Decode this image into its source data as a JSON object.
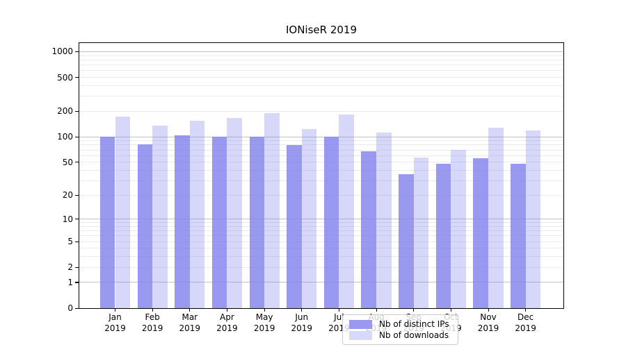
{
  "title": "IONiseR 2019",
  "chart_data": {
    "type": "bar",
    "title": "IONiseR 2019",
    "y_axis_scale": "log10(1+y)",
    "ylim": [
      0,
      1000
    ],
    "grid": "on",
    "legend_position": "inside-bottom-center",
    "categories": [
      {
        "month": "Jan",
        "year": "2019"
      },
      {
        "month": "Feb",
        "year": "2019"
      },
      {
        "month": "Mar",
        "year": "2019"
      },
      {
        "month": "Apr",
        "year": "2019"
      },
      {
        "month": "May",
        "year": "2019"
      },
      {
        "month": "Jun",
        "year": "2019"
      },
      {
        "month": "Jul",
        "year": "2019"
      },
      {
        "month": "Aug",
        "year": "2019"
      },
      {
        "month": "Sep",
        "year": "2019"
      },
      {
        "month": "Oct",
        "year": "2019"
      },
      {
        "month": "Nov",
        "year": "2019"
      },
      {
        "month": "Dec",
        "year": "2019"
      }
    ],
    "series": [
      {
        "name": "Nb of distinct IPs",
        "bar_color": "rgba(124,124,235,0.78)",
        "swatch_color": "#9999ef",
        "values": [
          100,
          82,
          104,
          101,
          100,
          80,
          100,
          68,
          36,
          48,
          56,
          48
        ]
      },
      {
        "name": "Nb of downloads",
        "bar_color": "rgba(124,124,235,0.30)",
        "swatch_color": "#d8d8f9",
        "values": [
          175,
          135,
          155,
          168,
          190,
          124,
          182,
          113,
          57,
          70,
          128,
          118
        ]
      }
    ],
    "y_ticks": [
      {
        "value": 1000,
        "label": "1000"
      },
      {
        "value": 500,
        "label": "500"
      },
      {
        "value": 200,
        "label": "200"
      },
      {
        "value": 100,
        "label": "100"
      },
      {
        "value": 50,
        "label": "50"
      },
      {
        "value": 20,
        "label": "20"
      },
      {
        "value": 10,
        "label": "10"
      },
      {
        "value": 5,
        "label": "5"
      },
      {
        "value": 2,
        "label": "2"
      },
      {
        "value": 1,
        "label": "1"
      },
      {
        "value": 0,
        "label": "0"
      }
    ],
    "major_gridline_values": [
      1,
      10,
      100,
      1000
    ],
    "minor_gridline_values": [
      2,
      3,
      4,
      5,
      6,
      7,
      8,
      9,
      20,
      30,
      40,
      50,
      60,
      70,
      80,
      90,
      200,
      300,
      400,
      500,
      600,
      700,
      800,
      900
    ],
    "colors": {
      "major_grid": "#c3c3c3",
      "minor_grid": "#eaeaea",
      "axis": "#000000",
      "background": "#ffffff"
    }
  }
}
